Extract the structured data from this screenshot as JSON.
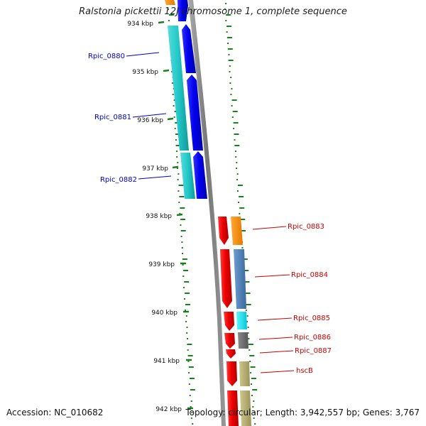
{
  "title": "Ralstonia pickettii 12J chromosome 1, complete sequence",
  "accession": "Accession: NC_010682",
  "stats": "Topology: circular; Length: 3,942,557 bp; Genes: 3,767",
  "ticks": [
    "934 kbp",
    "935 kbp",
    "936 kbp",
    "937 kbp",
    "938 kbp",
    "939 kbp",
    "940 kbp",
    "941 kbp",
    "942 kbp"
  ],
  "genes_left": [
    {
      "name": "Rpic_0880",
      "color": "#0000cc"
    },
    {
      "name": "Rpic_0881",
      "color": "#0000cc"
    },
    {
      "name": "Rpic_0882",
      "color": "#0000cc"
    }
  ],
  "genes_right": [
    {
      "name": "Rpic_0883",
      "color": "#cc0000"
    },
    {
      "name": "Rpic_0884",
      "color": "#cc0000"
    },
    {
      "name": "Rpic_0885",
      "color": "#cc0000"
    },
    {
      "name": "Rpic_0886",
      "color": "#cc0000"
    },
    {
      "name": "Rpic_0887",
      "color": "#cc0000"
    },
    {
      "name": "hscB",
      "color": "#cc0000"
    }
  ],
  "colors": {
    "backbone": "#888888",
    "gc_dots": "#1e7d1e",
    "cds_blue": "#0000ee",
    "cds_cyan": "#22c7c7",
    "cds_red": "#ee0000",
    "orange": "#ff8c00",
    "steelblue": "#4f82b8",
    "aqua": "#00e5ee",
    "gray": "#6e6e6e",
    "khaki": "#b5ad6b"
  }
}
